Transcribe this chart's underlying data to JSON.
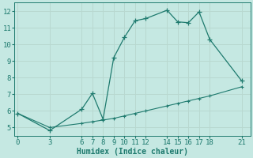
{
  "xlabel": "Humidex (Indice chaleur)",
  "bg_color": "#c5e8e2",
  "line_color": "#1e7a6e",
  "grid_color": "#b8d8d0",
  "x_ticks": [
    0,
    3,
    6,
    7,
    8,
    9,
    10,
    11,
    12,
    14,
    15,
    16,
    17,
    18,
    21
  ],
  "y_ticks": [
    5,
    6,
    7,
    8,
    9,
    10,
    11,
    12
  ],
  "ylim": [
    4.5,
    12.5
  ],
  "xlim": [
    -0.3,
    21.8
  ],
  "curve_x": [
    0,
    3,
    6,
    7,
    8,
    9,
    10,
    11,
    12,
    14,
    15,
    16,
    17,
    18,
    21
  ],
  "curve_y": [
    5.85,
    4.82,
    6.1,
    7.05,
    5.5,
    9.2,
    10.42,
    11.42,
    11.55,
    12.05,
    11.35,
    11.3,
    11.95,
    10.3,
    7.8
  ],
  "line_x": [
    0,
    3,
    6,
    7,
    8,
    9,
    10,
    11,
    12,
    14,
    15,
    16,
    17,
    18,
    21
  ],
  "line_y": [
    5.85,
    5.0,
    5.25,
    5.35,
    5.45,
    5.55,
    5.7,
    5.85,
    6.0,
    6.3,
    6.45,
    6.6,
    6.75,
    6.9,
    7.45
  ]
}
